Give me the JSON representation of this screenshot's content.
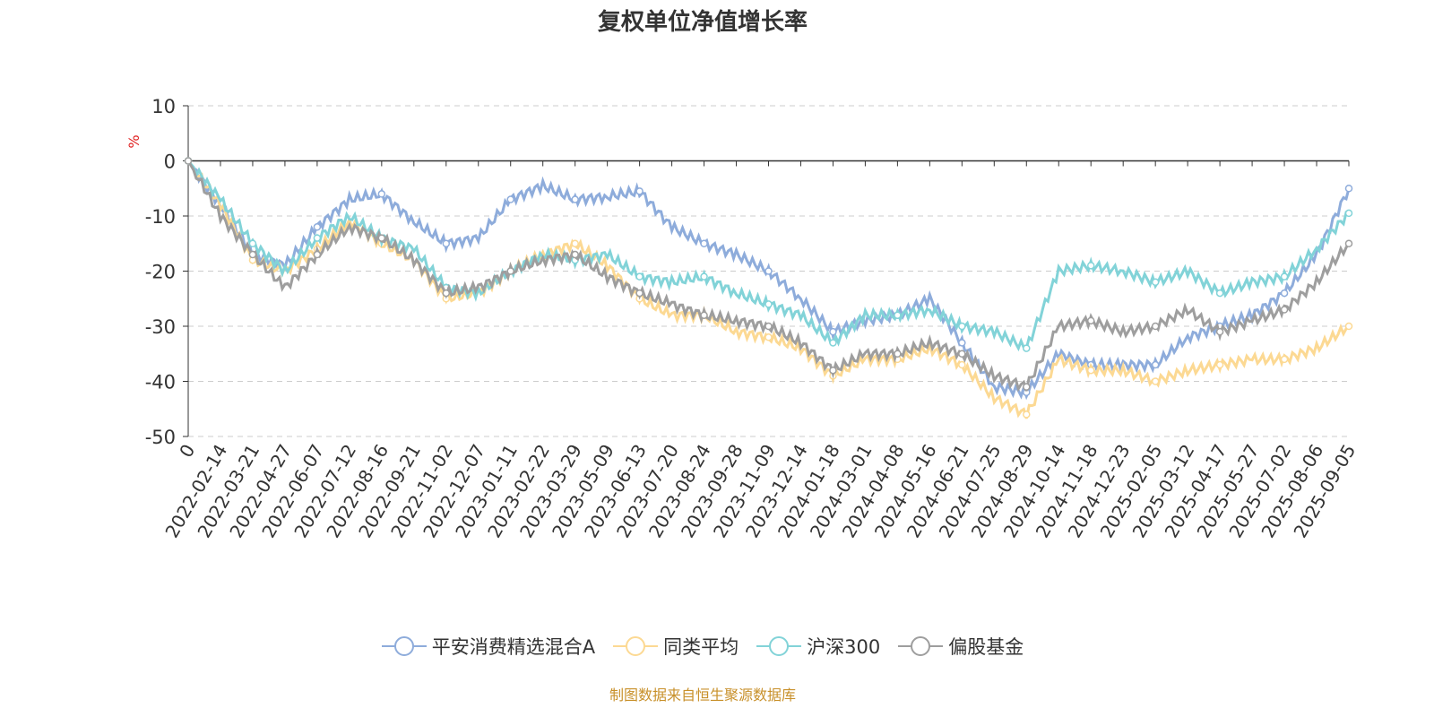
{
  "chart_data": {
    "type": "line",
    "title": "复权单位净值增长率",
    "ylabel": "%",
    "ylim": [
      -50,
      10
    ],
    "yticks": [
      10,
      0,
      -10,
      -20,
      -30,
      -40,
      -50
    ],
    "grid": true,
    "legend_position": "bottom",
    "categories": [
      "0",
      "2022-02-14",
      "2022-03-21",
      "2022-04-27",
      "2022-06-07",
      "2022-07-12",
      "2022-08-16",
      "2022-09-21",
      "2022-11-02",
      "2022-12-07",
      "2023-01-11",
      "2023-02-22",
      "2023-03-29",
      "2023-05-09",
      "2023-06-13",
      "2023-07-20",
      "2023-08-24",
      "2023-09-28",
      "2023-11-09",
      "2023-12-14",
      "2024-01-18",
      "2024-03-01",
      "2024-04-08",
      "2024-05-16",
      "2024-06-21",
      "2024-07-25",
      "2024-08-29",
      "2024-10-14",
      "2024-11-18",
      "2024-12-23",
      "2025-02-05",
      "2025-03-12",
      "2025-04-17",
      "2025-05-27",
      "2025-07-02",
      "2025-08-06",
      "2025-09-05"
    ],
    "series": [
      {
        "name": "平安消费精选混合A",
        "color": "#8eacdb",
        "values": [
          0,
          -8,
          -17,
          -19,
          -12,
          -7,
          -6,
          -11,
          -15,
          -14,
          -7,
          -4.5,
          -7,
          -6.5,
          -5.5,
          -12,
          -15,
          -17,
          -20,
          -25,
          -31,
          -29,
          -28,
          -25,
          -33,
          -41,
          -42,
          -35,
          -37,
          -37,
          -37,
          -32,
          -30,
          -28,
          -24,
          -17,
          -5
        ]
      },
      {
        "name": "同类平均",
        "color": "#fcd993",
        "values": [
          0,
          -8,
          -18,
          -20,
          -16,
          -11,
          -15,
          -18,
          -25,
          -24,
          -20,
          -17,
          -15,
          -19,
          -25,
          -28,
          -28,
          -31,
          -32,
          -34,
          -39,
          -36,
          -36,
          -34,
          -37,
          -43,
          -46,
          -36,
          -38,
          -38,
          -40,
          -38,
          -37,
          -36,
          -36,
          -34,
          -30
        ]
      },
      {
        "name": "沪深300",
        "color": "#82d3d8",
        "values": [
          0,
          -7,
          -15,
          -20,
          -14,
          -10,
          -14,
          -16,
          -23,
          -24,
          -20,
          -17,
          -18,
          -17,
          -21,
          -22,
          -21,
          -24,
          -26,
          -28,
          -33,
          -28,
          -28,
          -27,
          -30,
          -31,
          -34,
          -20,
          -19,
          -20,
          -22,
          -20,
          -24,
          -22,
          -21,
          -16,
          -9.5
        ]
      },
      {
        "name": "偏股基金",
        "color": "#9e9e9e",
        "values": [
          0,
          -10,
          -17,
          -23,
          -17,
          -12,
          -14,
          -18,
          -24,
          -23,
          -20,
          -18,
          -17,
          -21,
          -24,
          -26,
          -28,
          -29,
          -30,
          -33,
          -38,
          -35,
          -35,
          -33,
          -35,
          -39,
          -41,
          -30,
          -29,
          -31,
          -30,
          -27,
          -31,
          -29,
          -27,
          -22,
          -15
        ]
      }
    ]
  },
  "source": "制图数据来自恒生聚源数据库"
}
